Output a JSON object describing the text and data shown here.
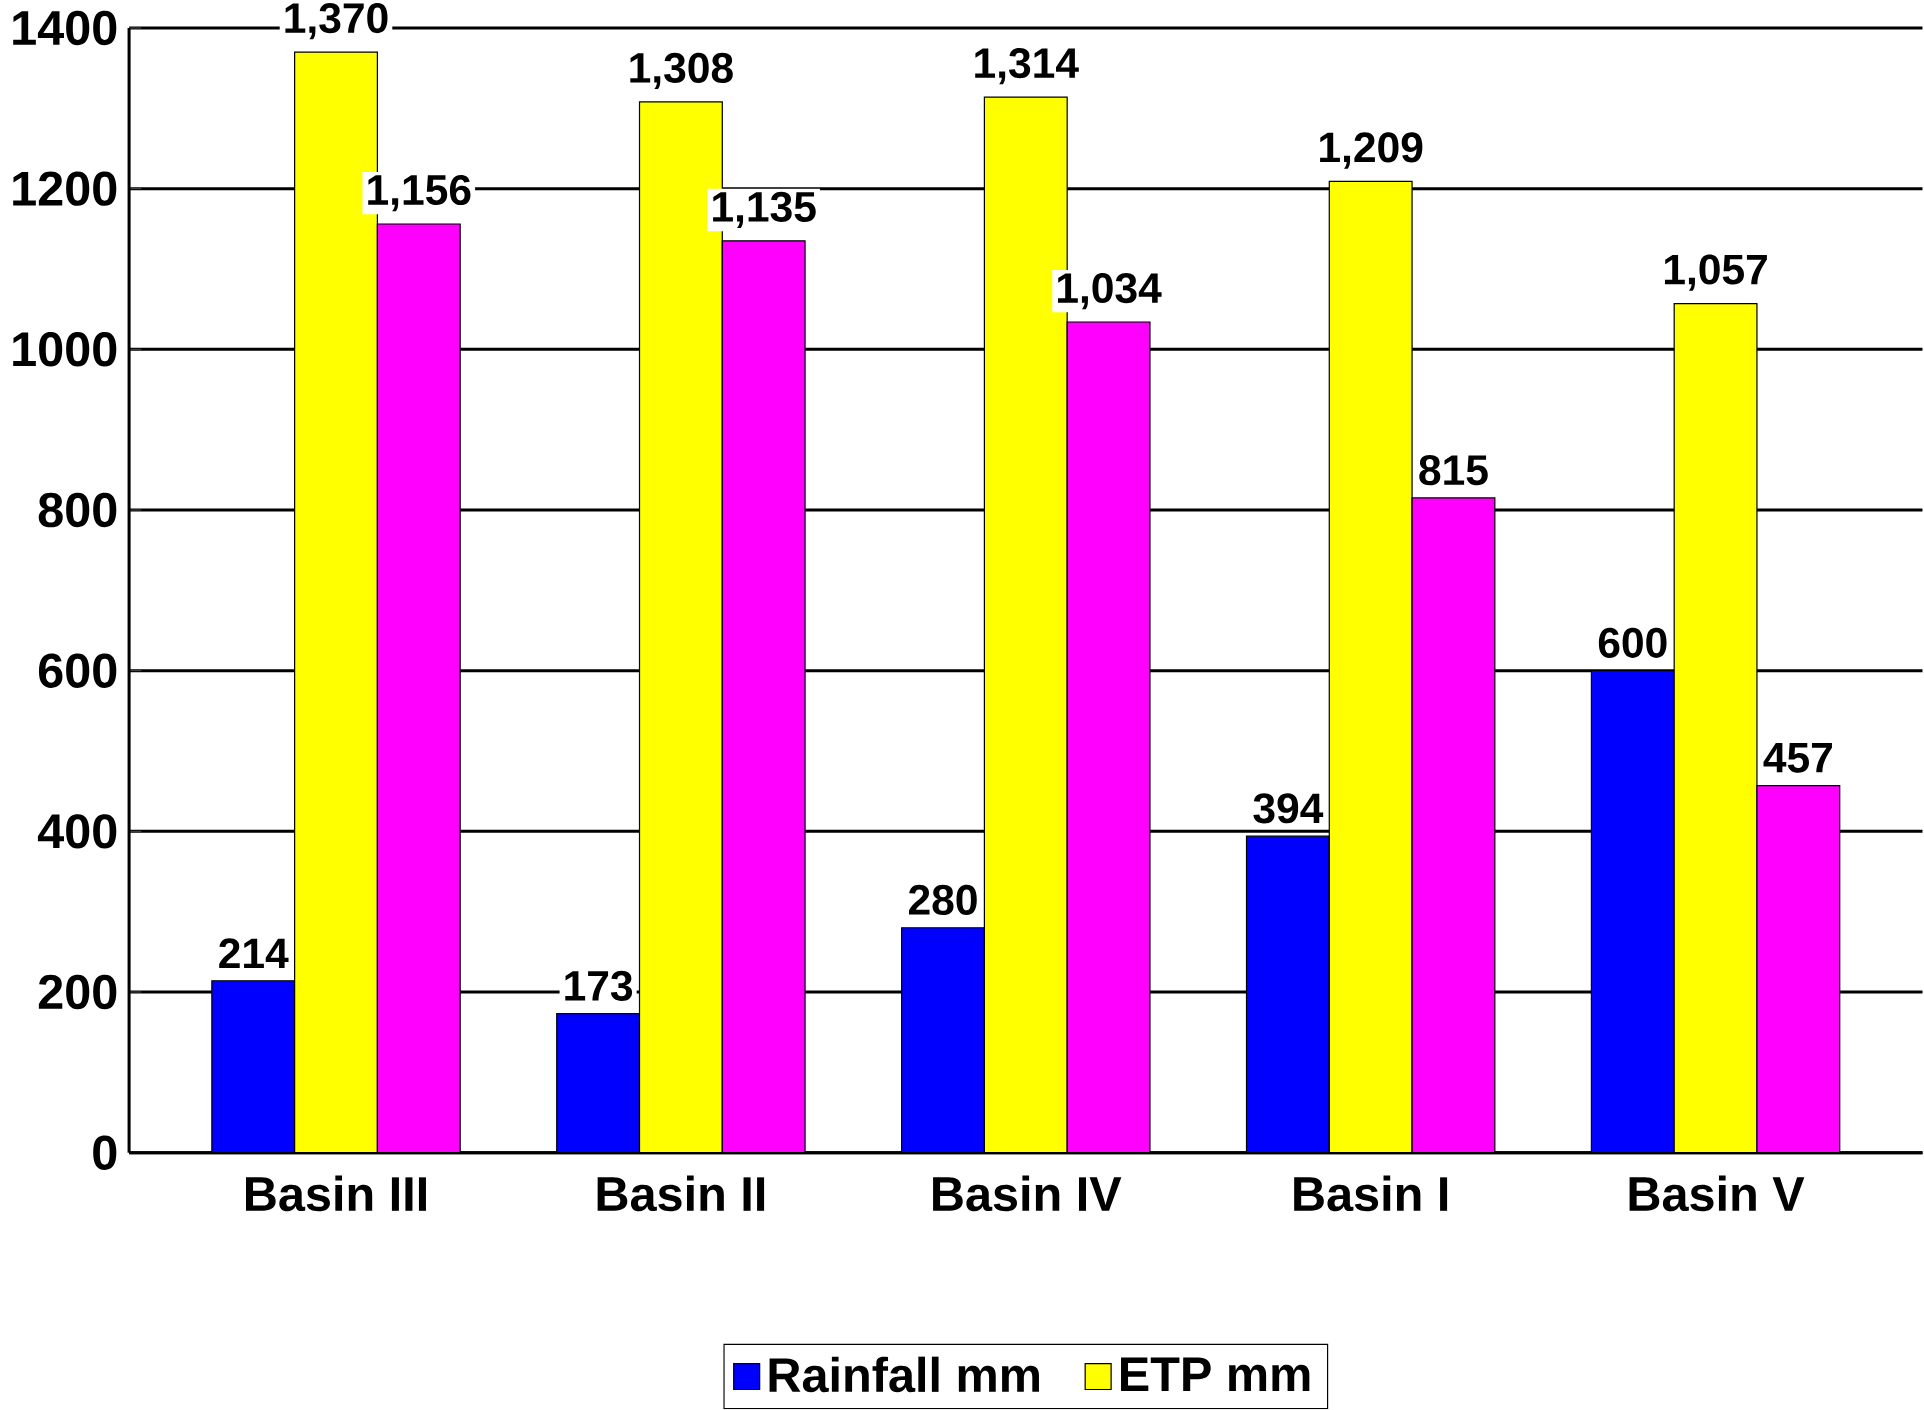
{
  "chart_data": {
    "type": "bar",
    "categories": [
      "Basin III",
      "Basin II",
      "Basin IV",
      "Basin I",
      "Basin V"
    ],
    "series": [
      {
        "name": "Rainfall mm",
        "color": "#0000ff",
        "values": [
          214,
          173,
          280,
          394,
          600
        ],
        "value_labels": [
          "214",
          "173",
          "280",
          "394",
          "600"
        ]
      },
      {
        "name": "ETP mm",
        "color": "#ffff00",
        "values": [
          1370,
          1308,
          1314,
          1209,
          1057
        ],
        "value_labels": [
          "1,370",
          "1,308",
          "1,314",
          "1,209",
          "1,057"
        ]
      },
      {
        "color": "#ff00ff",
        "values": [
          1156,
          1135,
          1034,
          815,
          457
        ],
        "value_labels": [
          "1,156",
          "1,135",
          "1,034",
          "815",
          "457"
        ]
      }
    ],
    "ylim": [
      0,
      1400
    ],
    "yticks": [
      0,
      200,
      400,
      600,
      800,
      1000,
      1200,
      1400
    ],
    "grid": "y",
    "legend": "bottom"
  }
}
